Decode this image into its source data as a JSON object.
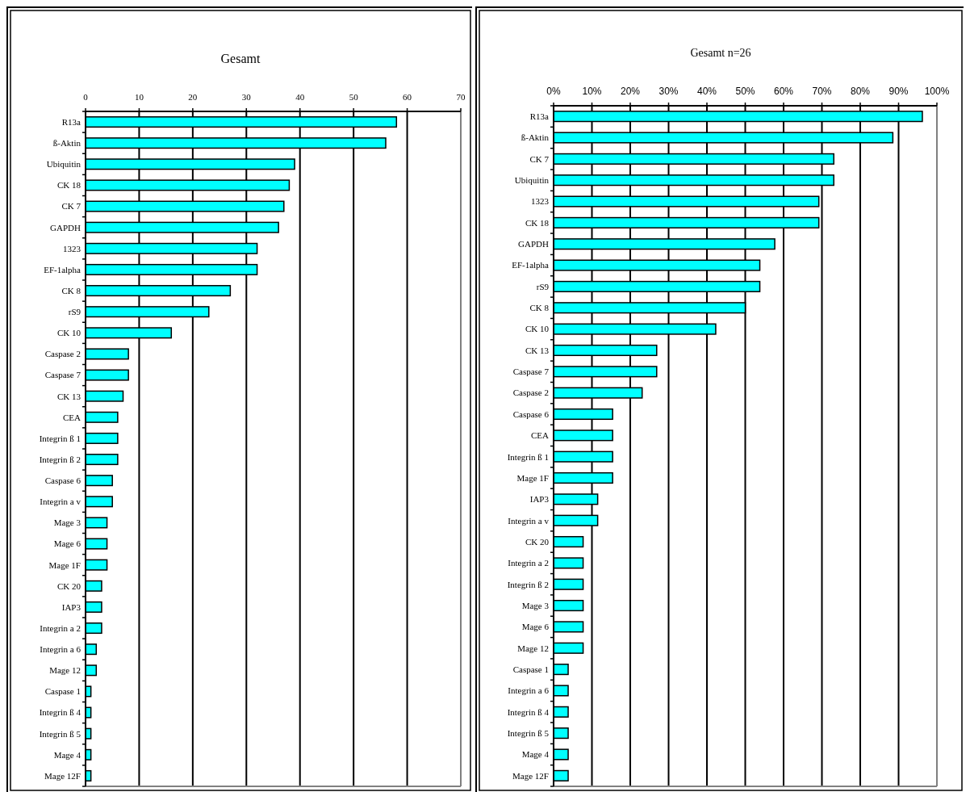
{
  "chart_data": [
    {
      "type": "bar",
      "orientation": "horizontal",
      "title": "Gesamt",
      "categories": [
        "R13a",
        "ß-Aktin",
        "Ubiquitin",
        "CK 18",
        "CK 7",
        "GAPDH",
        "1323",
        "EF-1alpha",
        "CK 8",
        "rS9",
        "CK 10",
        "Caspase 2",
        "Caspase 7",
        "CK 13",
        "CEA",
        "Integrin ß 1",
        "Integrin ß 2",
        "Caspase 6",
        "Integrin a v",
        "Mage 3",
        "Mage 6",
        "Mage 1F",
        "CK 20",
        "IAP3",
        "Integrin a 2",
        "Integrin a 6",
        "Mage 12",
        "Caspase 1",
        "Integrin ß 4",
        "Integrin ß 5",
        "Mage 4",
        "Mage 12F"
      ],
      "values": [
        58,
        56,
        39,
        38,
        37,
        36,
        32,
        32,
        27,
        23,
        16,
        8,
        8,
        7,
        6,
        6,
        6,
        5,
        5,
        4,
        4,
        4,
        3,
        3,
        3,
        2,
        2,
        1,
        1,
        1,
        1,
        1
      ],
      "color": "#00ffff",
      "xlim": [
        0,
        70
      ],
      "xticks": [
        0,
        10,
        20,
        30,
        40,
        50,
        60,
        70
      ],
      "grid": "x"
    },
    {
      "type": "bar",
      "orientation": "horizontal",
      "title": "Gesamt n=26",
      "categories": [
        "R13a",
        "ß-Aktin",
        "CK 7",
        "Ubiquitin",
        "1323",
        "CK 18",
        "GAPDH",
        "EF-1alpha",
        "rS9",
        "CK 8",
        "CK 10",
        "CK 13",
        "Caspase 7",
        "Caspase 2",
        "Caspase 6",
        "CEA",
        "Integrin ß 1",
        "Mage 1F",
        "IAP3",
        "Integrin a v",
        "CK 20",
        "Integrin a 2",
        "Integrin ß 2",
        "Mage 3",
        "Mage 6",
        "Mage 12",
        "Caspase 1",
        "Integrin a 6",
        "Integrin ß 4",
        "Integrin ß 5",
        "Mage 4",
        "Mage 12F"
      ],
      "values": [
        96.2,
        88.5,
        73.1,
        73.1,
        69.2,
        69.2,
        57.7,
        53.8,
        53.8,
        50,
        42.3,
        26.9,
        26.9,
        23.1,
        15.4,
        15.4,
        15.4,
        15.4,
        11.5,
        11.5,
        7.7,
        7.7,
        7.7,
        7.7,
        7.7,
        7.7,
        3.8,
        3.8,
        3.8,
        3.8,
        3.8,
        3.8
      ],
      "color": "#00ffff",
      "xlim": [
        0,
        100
      ],
      "xticks": [
        {
          "value": 0,
          "label": "0%"
        },
        {
          "value": 10,
          "label": "10%"
        },
        {
          "value": 20,
          "label": "20%"
        },
        {
          "value": 30,
          "label": "30%"
        },
        {
          "value": 40,
          "label": "40%"
        },
        {
          "value": 50,
          "label": "50%"
        },
        {
          "value": 60,
          "label": "60%"
        },
        {
          "value": 70,
          "label": "70%"
        },
        {
          "value": 80,
          "label": "80%"
        },
        {
          "value": 90,
          "label": "90%"
        },
        {
          "value": 100,
          "label": "100%"
        }
      ],
      "grid": "x"
    }
  ]
}
